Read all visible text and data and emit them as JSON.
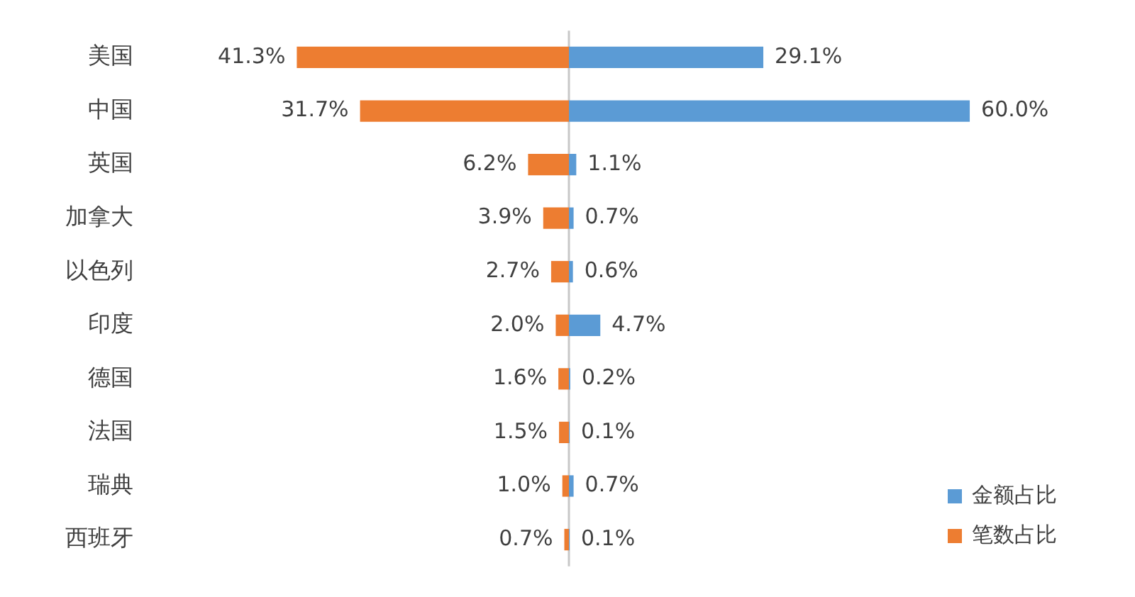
{
  "chart_data": [
    {
      "type": "bar",
      "orientation": "horizontal",
      "categories": [
        "美国",
        "中国",
        "英国",
        "加拿大",
        "以色列",
        "印度",
        "德国",
        "法国",
        "瑞典",
        "西班牙"
      ],
      "series": [
        {
          "name": "笔数占比",
          "color": "#ed7d31",
          "values": [
            41.3,
            31.7,
            6.2,
            3.9,
            2.7,
            2.0,
            1.6,
            1.5,
            1.0,
            0.7
          ],
          "value_labels": [
            "41.3%",
            "31.7%",
            "6.2%",
            "3.9%",
            "2.7%",
            "2.0%",
            "1.6%",
            "1.5%",
            "1.0%",
            "0.7%"
          ]
        }
      ],
      "legend": "bottom right",
      "tick_labels": "y"
    },
    {
      "type": "bar",
      "orientation": "horizontal",
      "categories": [
        null,
        null,
        null,
        null,
        null,
        null,
        null,
        null,
        null,
        null
      ],
      "series": [
        {
          "name": "金额占比",
          "color": "#5b9bd5",
          "values": [
            29.1,
            60.0,
            1.1,
            0.7,
            0.6,
            4.7,
            0.2,
            0.1,
            0.7,
            0.1
          ],
          "value_labels": [
            "29.1%",
            "60.0%",
            "1.1%",
            "0.7%",
            "0.6%",
            "4.7%",
            "0.2%",
            "0.1%",
            "0.7%",
            "0.1%"
          ]
        }
      ],
      "legend": "bottom right",
      "tick_labels": false
    }
  ]
}
